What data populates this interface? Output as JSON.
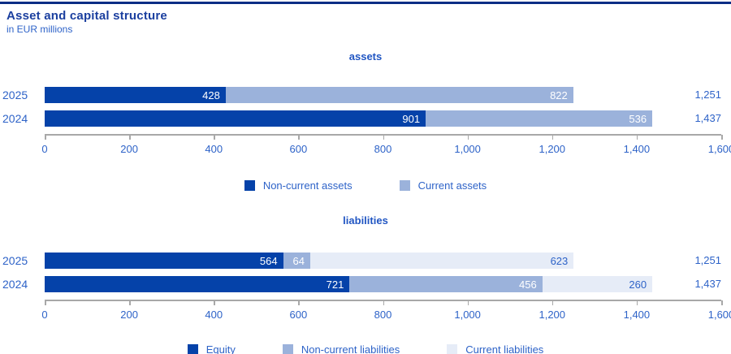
{
  "page": {
    "title": "Asset and capital structure",
    "subtitle": "in EUR millions"
  },
  "colors": {
    "top_rule": "#0a2d85",
    "title_blue": "#1b3f9f",
    "heading_blue": "#2156c3",
    "text_blue": "#2e63c8",
    "bar_dark_blue": "#0542a9",
    "bar_medium_blue": "#9bb2db",
    "bar_light_blue": "#e6ecf7",
    "axis_gray": "#a8a8a8"
  },
  "chart_data": [
    {
      "type": "bar",
      "orientation": "horizontal",
      "stacked": true,
      "title": "assets",
      "categories": [
        "2025",
        "2024"
      ],
      "series": [
        {
          "name": "Non-current assets",
          "color": "#0542a9",
          "value_label_color": "#ffffff",
          "values": [
            428,
            901
          ]
        },
        {
          "name": "Current assets",
          "color": "#9bb2db",
          "value_label_color": "#ffffff",
          "values": [
            822,
            536
          ]
        }
      ],
      "totals": [
        "1,251",
        "1,437"
      ],
      "xlim": [
        0,
        1600
      ],
      "ticks": [
        "0",
        "200",
        "400",
        "600",
        "800",
        "1,000",
        "1,200",
        "1,400",
        "1,600"
      ],
      "grid": false,
      "legend_position": "bottom"
    },
    {
      "type": "bar",
      "orientation": "horizontal",
      "stacked": true,
      "title": "liabilities",
      "categories": [
        "2025",
        "2024"
      ],
      "series": [
        {
          "name": "Equity",
          "color": "#0542a9",
          "value_label_color": "#ffffff",
          "values": [
            564,
            721
          ]
        },
        {
          "name": "Non-current liabilities",
          "color": "#9bb2db",
          "value_label_color": "#ffffff",
          "values": [
            64,
            456
          ]
        },
        {
          "name": "Current liabilities",
          "color": "#e6ecf7",
          "value_label_color": "#2e63c8",
          "values": [
            623,
            260
          ]
        }
      ],
      "totals": [
        "1,251",
        "1,437"
      ],
      "xlim": [
        0,
        1600
      ],
      "ticks": [
        "0",
        "200",
        "400",
        "600",
        "800",
        "1,000",
        "1,200",
        "1,400",
        "1,600"
      ],
      "grid": false,
      "legend_position": "bottom"
    }
  ]
}
